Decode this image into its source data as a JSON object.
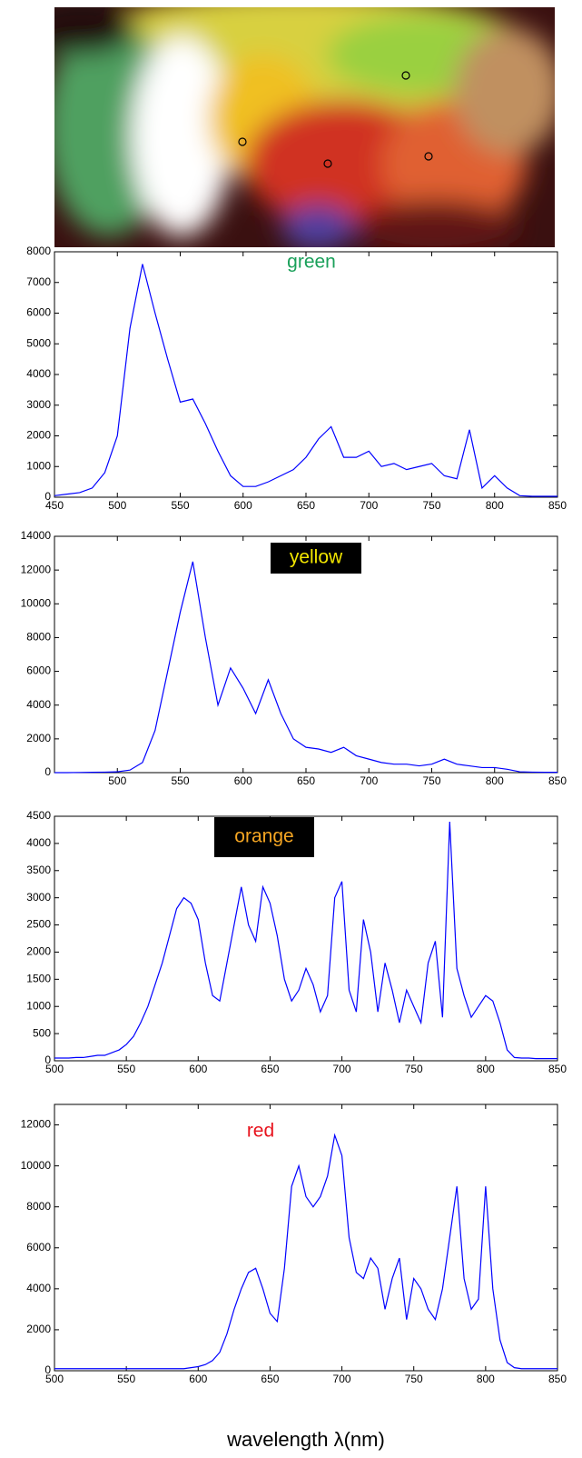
{
  "chart_data": [
    {
      "type": "line",
      "annotation": {
        "text": "green",
        "color": "#1aa05a"
      },
      "color": "#0000ff",
      "x": [
        450,
        460,
        470,
        480,
        490,
        500,
        510,
        520,
        530,
        540,
        550,
        560,
        570,
        580,
        590,
        600,
        610,
        620,
        630,
        640,
        650,
        660,
        670,
        680,
        690,
        700,
        710,
        720,
        730,
        740,
        750,
        760,
        770,
        780,
        790,
        800,
        810,
        820,
        830,
        840,
        850
      ],
      "values": [
        50,
        100,
        150,
        300,
        800,
        2000,
        5500,
        7600,
        6000,
        4500,
        3100,
        3200,
        2400,
        1500,
        700,
        350,
        350,
        500,
        700,
        900,
        1300,
        1900,
        2300,
        1300,
        1300,
        1500,
        1000,
        1100,
        900,
        1000,
        1100,
        700,
        600,
        2200,
        300,
        700,
        300,
        50,
        30,
        30,
        30
      ],
      "xlim": [
        450,
        850
      ],
      "xticks": [
        450,
        500,
        550,
        600,
        650,
        700,
        750,
        800,
        850
      ],
      "ylim": [
        0,
        8000
      ],
      "yticks": [
        0,
        1000,
        2000,
        3000,
        4000,
        5000,
        6000,
        7000,
        8000
      ],
      "grid": false
    },
    {
      "type": "line",
      "annotation": {
        "text": "yellow",
        "color": "#f2e600",
        "background": "#000000"
      },
      "color": "#0000ff",
      "x": [
        450,
        460,
        470,
        480,
        490,
        500,
        510,
        520,
        530,
        540,
        550,
        560,
        570,
        580,
        590,
        600,
        610,
        620,
        630,
        640,
        650,
        660,
        670,
        680,
        690,
        700,
        710,
        720,
        730,
        740,
        750,
        760,
        770,
        780,
        790,
        800,
        810,
        820,
        830,
        840,
        850
      ],
      "values": [
        0,
        0,
        10,
        20,
        30,
        50,
        150,
        600,
        2500,
        6000,
        9500,
        12500,
        8000,
        4000,
        6200,
        5000,
        3500,
        5500,
        3500,
        2000,
        1500,
        1400,
        1200,
        1500,
        1000,
        800,
        600,
        500,
        500,
        400,
        500,
        800,
        500,
        400,
        300,
        300,
        200,
        50,
        30,
        20,
        20
      ],
      "xlim": [
        450,
        850
      ],
      "xticks": [
        500,
        550,
        600,
        650,
        700,
        750,
        800,
        850
      ],
      "ylim": [
        0,
        14000
      ],
      "yticks": [
        0,
        2000,
        4000,
        6000,
        8000,
        10000,
        12000,
        14000
      ],
      "grid": false
    },
    {
      "type": "line",
      "annotation": {
        "text": "orange",
        "color": "#f5a623",
        "background": "#000000"
      },
      "color": "#0000ff",
      "x": [
        500,
        505,
        510,
        515,
        520,
        525,
        530,
        535,
        540,
        545,
        550,
        555,
        560,
        565,
        570,
        575,
        580,
        585,
        590,
        595,
        600,
        605,
        610,
        615,
        620,
        625,
        630,
        635,
        640,
        645,
        650,
        655,
        660,
        665,
        670,
        675,
        680,
        685,
        690,
        695,
        700,
        705,
        710,
        715,
        720,
        725,
        730,
        735,
        740,
        745,
        750,
        755,
        760,
        765,
        770,
        775,
        780,
        785,
        790,
        795,
        800,
        805,
        810,
        815,
        820,
        825,
        830,
        835,
        840,
        845,
        850
      ],
      "values": [
        50,
        50,
        50,
        60,
        60,
        80,
        100,
        100,
        150,
        200,
        300,
        450,
        700,
        1000,
        1400,
        1800,
        2300,
        2800,
        3000,
        2900,
        2600,
        1800,
        1200,
        1100,
        1800,
        2500,
        3200,
        2500,
        2200,
        3200,
        2900,
        2300,
        1500,
        1100,
        1300,
        1700,
        1400,
        900,
        1200,
        3000,
        3300,
        1300,
        900,
        2600,
        2000,
        900,
        1800,
        1300,
        700,
        1300,
        1000,
        700,
        1800,
        2200,
        800,
        4400,
        1700,
        1200,
        800,
        1000,
        1200,
        1100,
        700,
        200,
        60,
        50,
        50,
        40,
        40,
        40,
        40
      ],
      "xlim": [
        500,
        850
      ],
      "xticks": [
        500,
        550,
        600,
        650,
        700,
        750,
        800,
        850
      ],
      "ylim": [
        0,
        4500
      ],
      "yticks": [
        0,
        500,
        1000,
        1500,
        2000,
        2500,
        3000,
        3500,
        4000,
        4500
      ],
      "grid": false
    },
    {
      "type": "line",
      "annotation": {
        "text": "red",
        "color": "#e8141e"
      },
      "color": "#0000ff",
      "xlabel": "wavelength λ(nm)",
      "x": [
        500,
        505,
        510,
        515,
        520,
        525,
        530,
        535,
        540,
        545,
        550,
        555,
        560,
        565,
        570,
        575,
        580,
        585,
        590,
        595,
        600,
        605,
        610,
        615,
        620,
        625,
        630,
        635,
        640,
        645,
        650,
        655,
        660,
        665,
        670,
        675,
        680,
        685,
        690,
        695,
        700,
        705,
        710,
        715,
        720,
        725,
        730,
        735,
        740,
        745,
        750,
        755,
        760,
        765,
        770,
        775,
        780,
        785,
        790,
        795,
        800,
        805,
        810,
        815,
        820,
        825,
        830,
        835,
        840,
        845,
        850
      ],
      "values": [
        100,
        100,
        100,
        100,
        100,
        100,
        100,
        100,
        100,
        100,
        100,
        100,
        100,
        100,
        100,
        100,
        100,
        100,
        100,
        150,
        200,
        300,
        500,
        900,
        1800,
        3000,
        4000,
        4800,
        5000,
        4000,
        2800,
        2400,
        5000,
        9000,
        10000,
        8500,
        8000,
        8500,
        9500,
        11500,
        10500,
        6500,
        4800,
        4500,
        5500,
        5000,
        3000,
        4500,
        5500,
        2500,
        4500,
        4000,
        3000,
        2500,
        4000,
        6500,
        9000,
        4500,
        3000,
        3500,
        9000,
        4000,
        1500,
        400,
        150,
        100,
        100,
        100,
        100,
        100,
        100
      ],
      "xlim": [
        500,
        850
      ],
      "xticks": [
        500,
        550,
        600,
        650,
        700,
        750,
        800,
        850
      ],
      "ylim": [
        0,
        13000
      ],
      "yticks": [
        0,
        2000,
        4000,
        6000,
        8000,
        10000,
        12000
      ],
      "grid": false
    }
  ]
}
